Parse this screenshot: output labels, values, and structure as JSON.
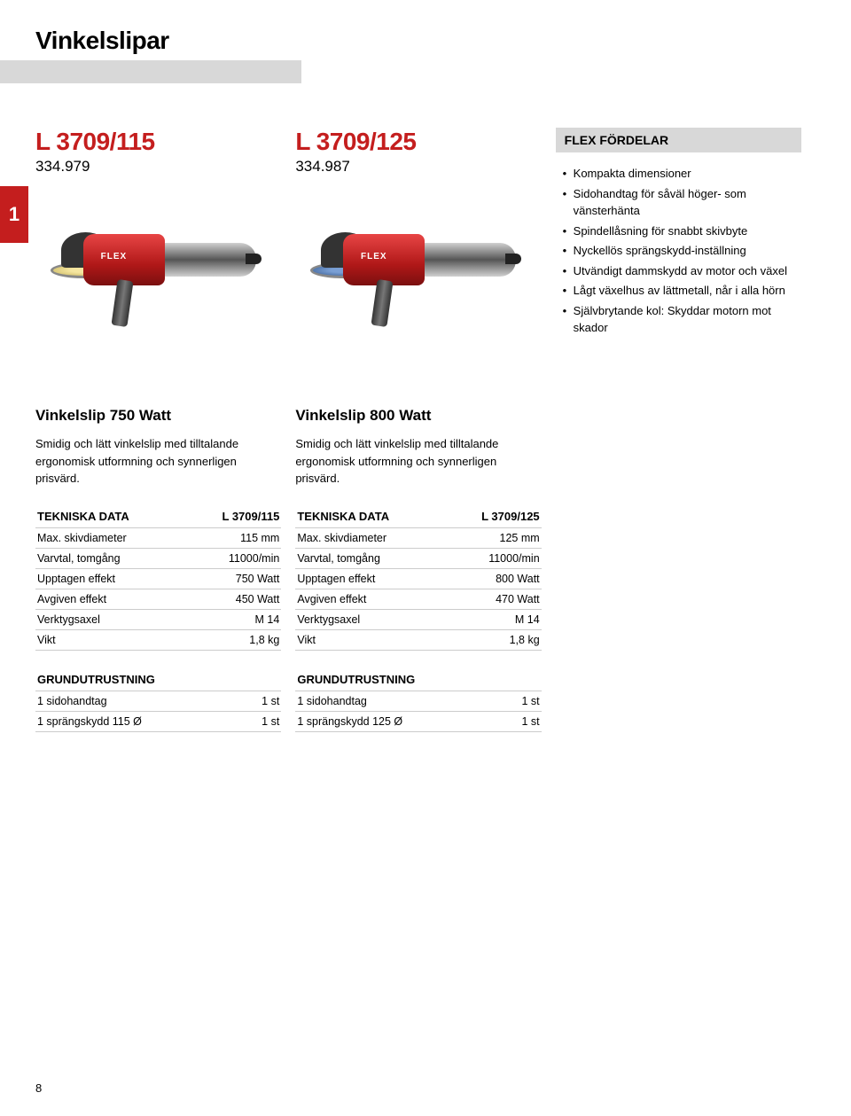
{
  "page": {
    "title": "Vinkelslipar",
    "side_tab": "1",
    "page_number": "8"
  },
  "product1": {
    "name": "L 3709/115",
    "code": "334.979",
    "brand_label": "FLEX",
    "subtitle": "Vinkelslip 750 Watt",
    "description": "Smidig och lätt vinkelslip med tilltalande ergonomisk utformning och synnerligen prisvärd.",
    "spec_heading": "TEKNISKA DATA",
    "spec_model": "L 3709/115",
    "specs": [
      {
        "k": "Max. skivdiameter",
        "v": "115 mm"
      },
      {
        "k": "Varvtal, tomgång",
        "v": "11000/min"
      },
      {
        "k": "Upptagen effekt",
        "v": "750 Watt"
      },
      {
        "k": "Avgiven effekt",
        "v": "450 Watt"
      },
      {
        "k": "Verktygsaxel",
        "v": "M 14"
      },
      {
        "k": "Vikt",
        "v": "1,8 kg"
      }
    ],
    "equip_heading": "GRUNDUTRUSTNING",
    "equip": [
      {
        "k": "1 sidohandtag",
        "v": "1 st"
      },
      {
        "k": "1 sprängskydd 115 Ø",
        "v": "1 st"
      }
    ]
  },
  "product2": {
    "name": "L 3709/125",
    "code": "334.987",
    "brand_label": "FLEX",
    "subtitle": "Vinkelslip 800 Watt",
    "description": "Smidig och lätt vinkelslip med tilltalande ergonomisk utformning och synnerligen prisvärd.",
    "spec_heading": "TEKNISKA DATA",
    "spec_model": "L 3709/125",
    "specs": [
      {
        "k": "Max. skivdiameter",
        "v": "125 mm"
      },
      {
        "k": "Varvtal, tomgång",
        "v": "11000/min"
      },
      {
        "k": "Upptagen effekt",
        "v": "800 Watt"
      },
      {
        "k": "Avgiven effekt",
        "v": "470 Watt"
      },
      {
        "k": "Verktygsaxel",
        "v": "M 14"
      },
      {
        "k": "Vikt",
        "v": "1,8 kg"
      }
    ],
    "equip_heading": "GRUNDUTRUSTNING",
    "equip": [
      {
        "k": "1 sidohandtag",
        "v": "1 st"
      },
      {
        "k": "1 sprängskydd 125 Ø",
        "v": "1 st"
      }
    ]
  },
  "advantages": {
    "heading": "FLEX FÖRDELAR",
    "items": [
      "Kompakta dimensioner",
      "Sidohandtag för såväl höger- som vänsterhänta",
      "Spindellåsning för snabbt skivbyte",
      "Nyckellös sprängskydd-inställning",
      "Utvändigt dammskydd av motor och växel",
      "Lågt växelhus av lättmetall, når i alla hörn",
      "Självbrytande kol: Skyddar motorn mot skador"
    ]
  },
  "colors": {
    "accent_red": "#c41e1e",
    "header_gray": "#d8d8d8",
    "border_gray": "#cccccc"
  }
}
